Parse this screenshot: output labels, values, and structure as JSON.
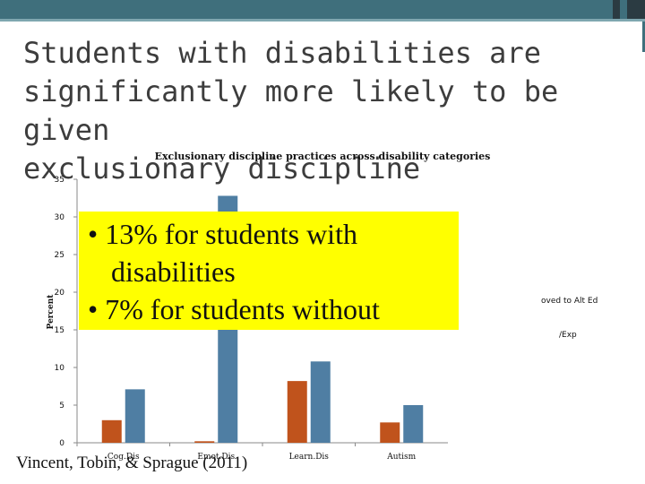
{
  "slide": {
    "title": "Students with disabilities are\nsignificantly more likely to be given\nexclusionary discipline",
    "callout": {
      "line1": "• 13% for students with",
      "line2": "disabilities",
      "line3": "• 7% for students without"
    },
    "citation": "Vincent, Tobin, & Sprague (2011)",
    "legend_fragments": {
      "frag1": "oved to Alt Ed",
      "frag2": "/Exp"
    }
  },
  "colors": {
    "band": "#3f6f7c",
    "series_orange": "#c0531c",
    "series_blue": "#4f7ea3",
    "callout": "#ffff00"
  },
  "chart_data": {
    "type": "bar",
    "title": "Exclusionary discipline practices across disability categories",
    "ylabel": "Percent",
    "ylim": [
      0,
      35
    ],
    "yticks": [
      0,
      5,
      10,
      15,
      20,
      25,
      30,
      35
    ],
    "categories": [
      "Cog.Dis",
      "Emot.Dis",
      "Learn.Dis",
      "Autism"
    ],
    "series": [
      {
        "color": "#c0531c",
        "values": [
          3,
          0.2,
          8.2,
          2.7
        ]
      },
      {
        "color": "#4f7ea3",
        "values": [
          7.1,
          32.8,
          10.8,
          5
        ]
      }
    ]
  }
}
